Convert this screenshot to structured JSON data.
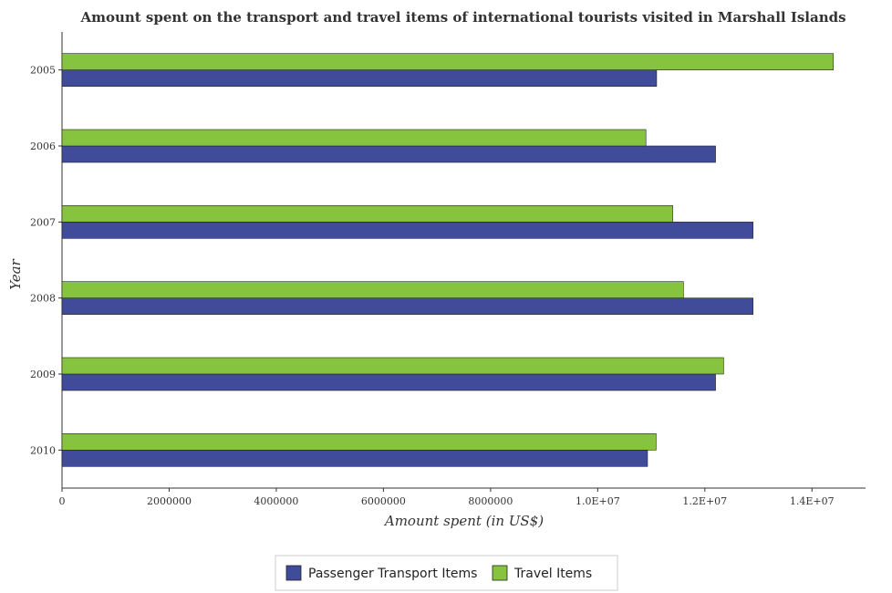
{
  "chart_data": {
    "type": "bar",
    "orientation": "horizontal",
    "title": "Amount spent on the transport and travel items of international tourists visited in Marshall Islands",
    "xlabel": "Amount spent (in US$)",
    "ylabel": "Year",
    "categories": [
      "2005",
      "2006",
      "2007",
      "2008",
      "2009",
      "2010"
    ],
    "series": [
      {
        "name": "Passenger Transport Items",
        "color": "#404b9a",
        "values": [
          11100000,
          12200000,
          12900000,
          12900000,
          12200000,
          10930000
        ]
      },
      {
        "name": "Travel Items",
        "color": "#86c440",
        "values": [
          14400000,
          10900000,
          11400000,
          11600000,
          12350000,
          11090000
        ]
      }
    ],
    "xlim": [
      0,
      15000000
    ],
    "xticks": [
      0,
      2000000,
      4000000,
      6000000,
      8000000,
      10000000,
      12000000,
      14000000
    ],
    "xtick_labels": [
      "0",
      "2000000",
      "4000000",
      "6000000",
      "8000000",
      "1.0E+07",
      "1.2E+07",
      "1.4E+07"
    ],
    "grid": false,
    "legend_position": "bottom-center"
  }
}
